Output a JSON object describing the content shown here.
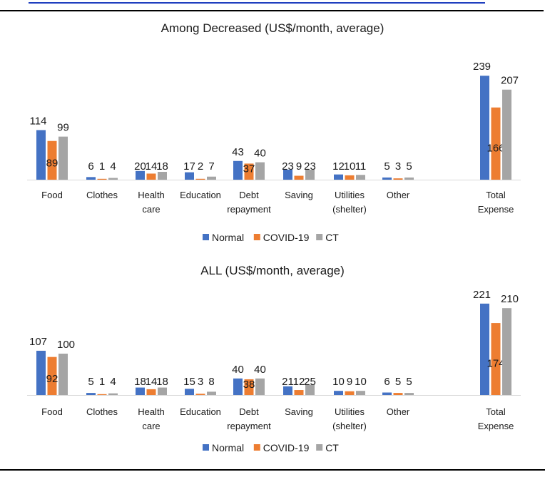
{
  "chart_data": [
    {
      "type": "bar",
      "title": "Among Decreased (US$/month, average)",
      "categories": [
        "Food",
        "Clothes",
        "Health care",
        "Education",
        "Debt repayment",
        "Saving",
        "Utilities (shelter)",
        "Other",
        "",
        "Total Expense"
      ],
      "series": [
        {
          "name": "Normal",
          "color": "#4472C4",
          "values": [
            114,
            6,
            20,
            17,
            43,
            23,
            12,
            5,
            null,
            239
          ]
        },
        {
          "name": "COVID-19",
          "color": "#ED7D31",
          "values": [
            89,
            1,
            14,
            2,
            37,
            9,
            10,
            3,
            null,
            166
          ]
        },
        {
          "name": "CT",
          "color": "#A5A5A5",
          "values": [
            99,
            4,
            18,
            7,
            40,
            23,
            11,
            5,
            null,
            207
          ]
        }
      ],
      "legend_position": "bottom",
      "grid": false
    },
    {
      "type": "bar",
      "title": "ALL (US$/month, average)",
      "categories": [
        "Food",
        "Clothes",
        "Health care",
        "Education",
        "Debt repayment",
        "Saving",
        "Utilities (shelter)",
        "Other",
        "",
        "Total Expense"
      ],
      "series": [
        {
          "name": "Normal",
          "color": "#4472C4",
          "values": [
            107,
            5,
            18,
            15,
            40,
            21,
            10,
            6,
            null,
            221
          ]
        },
        {
          "name": "COVID-19",
          "color": "#ED7D31",
          "values": [
            92,
            1,
            14,
            3,
            38,
            12,
            9,
            5,
            null,
            174
          ]
        },
        {
          "name": "CT",
          "color": "#A5A5A5",
          "values": [
            100,
            4,
            18,
            8,
            40,
            25,
            10,
            5,
            null,
            210
          ]
        }
      ],
      "legend_position": "bottom",
      "grid": false
    }
  ]
}
